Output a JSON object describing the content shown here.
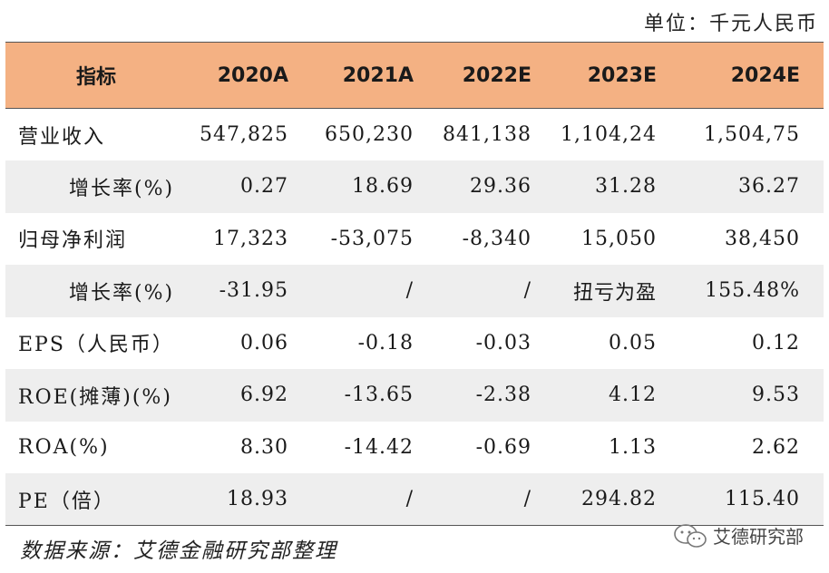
{
  "unit_label": "单位：千元人民币",
  "table": {
    "header": [
      "指标",
      "2020A",
      "2021A",
      "2022E",
      "2023E",
      "2024E"
    ],
    "rows": [
      [
        "营业收入",
        "547,825",
        "650,230",
        "841,138",
        "1,104,24",
        "1,504,75"
      ],
      [
        "增长率(%)",
        "0.27",
        "18.69",
        "29.36",
        "31.28",
        "36.27"
      ],
      [
        "归母净利润",
        "17,323",
        "-53,075",
        "-8,340",
        "15,050",
        "38,450"
      ],
      [
        "增长率(%)",
        "-31.95",
        "/",
        "/",
        "扭亏为盈",
        "155.48%"
      ],
      [
        "EPS（人民币）",
        "0.06",
        "-0.18",
        "-0.03",
        "0.05",
        "0.12"
      ],
      [
        "ROE(摊薄)(%)",
        "6.92",
        "-13.65",
        "-2.38",
        "4.12",
        "9.53"
      ],
      [
        "ROA(%)",
        "8.30",
        "-14.42",
        "-0.69",
        "1.13",
        "2.62"
      ],
      [
        "PE（倍）",
        "18.93",
        "/",
        "/",
        "294.82",
        "115.40"
      ]
    ]
  },
  "source_note": "数据来源：艾德金融研究部整理",
  "watermark": {
    "icon": "wechat-icon",
    "label": "艾德研究部"
  },
  "colors": {
    "header_bg": "#f4b183",
    "stripe_bg": "#eeeeee"
  }
}
